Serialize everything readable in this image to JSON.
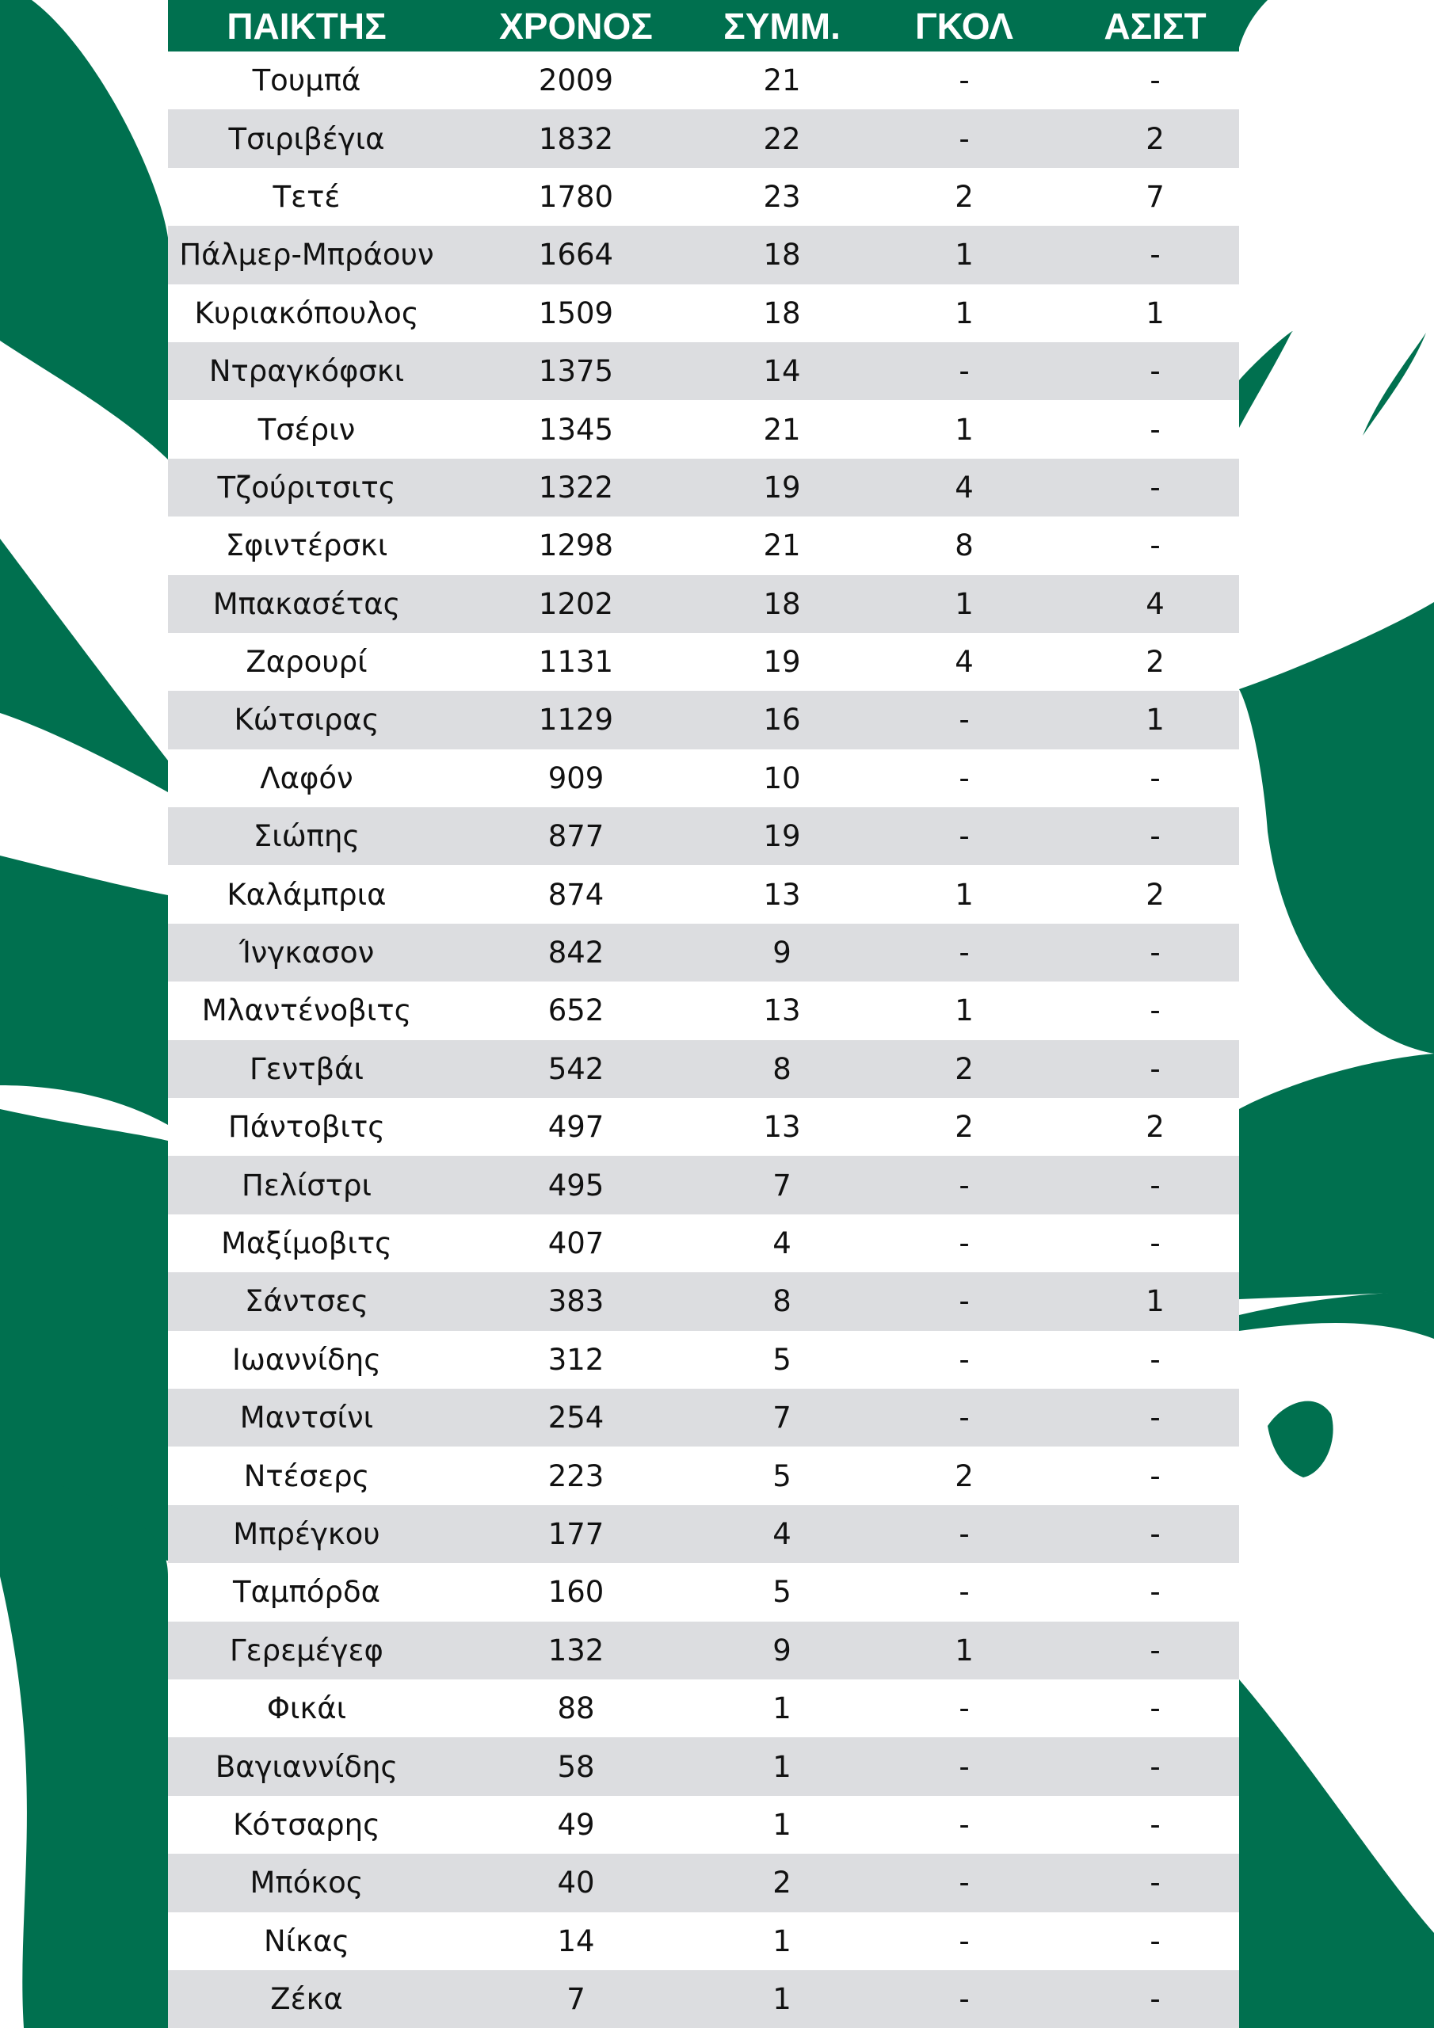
{
  "colors": {
    "brand_green": "#00704f",
    "row_alt": "#dcdde0"
  },
  "headers": [
    "ΠΑΙΚΤΗΣ",
    "ΧΡΟΝΟΣ",
    "ΣΥΜΜ.",
    "ΓΚΟΛ",
    "ΑΣΙΣΤ"
  ],
  "rows": [
    [
      "Τουμπά",
      "2009",
      "21",
      "-",
      "-"
    ],
    [
      "Τσιριβέγια",
      "1832",
      "22",
      "-",
      "2"
    ],
    [
      "Τετέ",
      "1780",
      "23",
      "2",
      "7"
    ],
    [
      "Πάλμερ-Μπράουν",
      "1664",
      "18",
      "1",
      "-"
    ],
    [
      "Κυριακόπουλος",
      "1509",
      "18",
      "1",
      "1"
    ],
    [
      "Ντραγκόφσκι",
      "1375",
      "14",
      "-",
      "-"
    ],
    [
      "Τσέριν",
      "1345",
      "21",
      "1",
      "-"
    ],
    [
      "Τζούριτσιτς",
      "1322",
      "19",
      "4",
      "-"
    ],
    [
      "Σφιντέρσκι",
      "1298",
      "21",
      "8",
      "-"
    ],
    [
      "Μπακασέτας",
      "1202",
      "18",
      "1",
      "4"
    ],
    [
      "Ζαρουρί",
      "1131",
      "19",
      "4",
      "2"
    ],
    [
      "Κώτσιρας",
      "1129",
      "16",
      "-",
      "1"
    ],
    [
      "Λαφόν",
      "909",
      "10",
      "-",
      "-"
    ],
    [
      "Σιώπης",
      "877",
      "19",
      "-",
      "-"
    ],
    [
      "Καλάμπρια",
      "874",
      "13",
      "1",
      "2"
    ],
    [
      "Ίνγκασον",
      "842",
      "9",
      "-",
      "-"
    ],
    [
      "Μλαντένοβιτς",
      "652",
      "13",
      "1",
      "-"
    ],
    [
      "Γεντβάι",
      "542",
      "8",
      "2",
      "-"
    ],
    [
      "Πάντοβιτς",
      "497",
      "13",
      "2",
      "2"
    ],
    [
      "Πελίστρι",
      "495",
      "7",
      "-",
      "-"
    ],
    [
      "Μαξίμοβιτς",
      "407",
      "4",
      "-",
      "-"
    ],
    [
      "Σάντσες",
      "383",
      "8",
      "-",
      "1"
    ],
    [
      "Ιωαννίδης",
      "312",
      "5",
      "-",
      "-"
    ],
    [
      "Μαντσίνι",
      "254",
      "7",
      "-",
      "-"
    ],
    [
      "Ντέσερς",
      "223",
      "5",
      "2",
      "-"
    ],
    [
      "Μπρέγκου",
      "177",
      "4",
      "-",
      "-"
    ],
    [
      "Ταμπόρδα",
      "160",
      "5",
      "-",
      "-"
    ],
    [
      "Γερεμέγεφ",
      "132",
      "9",
      "1",
      "-"
    ],
    [
      "Φικάι",
      "88",
      "1",
      "-",
      "-"
    ],
    [
      "Βαγιαννίδης",
      "58",
      "1",
      "-",
      "-"
    ],
    [
      "Κότσαρης",
      "49",
      "1",
      "-",
      "-"
    ],
    [
      "Μπόκος",
      "40",
      "2",
      "-",
      "-"
    ],
    [
      "Νίκας",
      "14",
      "1",
      "-",
      "-"
    ],
    [
      "Ζέκα",
      "7",
      "1",
      "-",
      "-"
    ]
  ]
}
